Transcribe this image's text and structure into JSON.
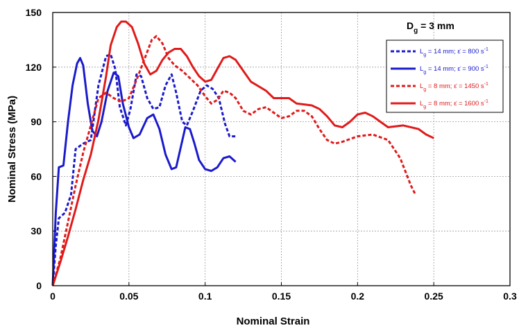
{
  "chart_data": {
    "type": "line",
    "xlabel": "Nominal Strain",
    "ylabel": "Nominal Stress (MPa)",
    "xlim": [
      0,
      0.3
    ],
    "ylim": [
      0,
      150
    ],
    "xticks": [
      0,
      0.05,
      0.1,
      0.15,
      0.2,
      0.25,
      0.3
    ],
    "xtick_labels": [
      "0",
      "0.05",
      "0.1",
      "0.15",
      "0.2",
      "0.25",
      "0.3"
    ],
    "yticks": [
      0,
      30,
      60,
      90,
      120,
      150
    ],
    "ytick_labels": [
      "0",
      "30",
      "60",
      "90",
      "120",
      "150"
    ],
    "grid": true,
    "legend_position": "top-right",
    "annotation": {
      "main": "D",
      "sub": "g",
      "rest": " = 3 mm"
    },
    "series": [
      {
        "name": "Lg = 14 mm; ε̇ = 800 s-1",
        "legend": {
          "l": "L",
          "g": "g",
          "mid": " = 14 mm; ",
          "rate": "ε̇",
          "val": " = 800 s",
          "exp": "-1"
        },
        "color": "#1a1acc",
        "style": "dashed",
        "points": [
          [
            0,
            0
          ],
          [
            0.002,
            22
          ],
          [
            0.004,
            37
          ],
          [
            0.008,
            40
          ],
          [
            0.012,
            50
          ],
          [
            0.015,
            75
          ],
          [
            0.02,
            78
          ],
          [
            0.025,
            80
          ],
          [
            0.03,
            110
          ],
          [
            0.035,
            126
          ],
          [
            0.038,
            127
          ],
          [
            0.041,
            119
          ],
          [
            0.044,
            98
          ],
          [
            0.048,
            88
          ],
          [
            0.051,
            97
          ],
          [
            0.055,
            116
          ],
          [
            0.058,
            115
          ],
          [
            0.062,
            103
          ],
          [
            0.066,
            97
          ],
          [
            0.07,
            98
          ],
          [
            0.074,
            110
          ],
          [
            0.078,
            116
          ],
          [
            0.081,
            106
          ],
          [
            0.085,
            90
          ],
          [
            0.088,
            88
          ],
          [
            0.092,
            96
          ],
          [
            0.097,
            107
          ],
          [
            0.101,
            110
          ],
          [
            0.105,
            108
          ],
          [
            0.109,
            103
          ],
          [
            0.113,
            89
          ],
          [
            0.116,
            82
          ],
          [
            0.12,
            82
          ]
        ]
      },
      {
        "name": "Lg = 14 mm; ε̇ = 900 s-1",
        "legend": {
          "l": "L",
          "g": "g",
          "mid": " = 14 mm; ",
          "rate": "ε̇",
          "val": " = 900 s",
          "exp": "-1"
        },
        "color": "#1a1acc",
        "style": "solid",
        "points": [
          [
            0,
            0
          ],
          [
            0.002,
            40
          ],
          [
            0.004,
            65
          ],
          [
            0.007,
            66
          ],
          [
            0.01,
            90
          ],
          [
            0.013,
            110
          ],
          [
            0.016,
            122
          ],
          [
            0.018,
            125
          ],
          [
            0.02,
            121
          ],
          [
            0.023,
            100
          ],
          [
            0.026,
            85
          ],
          [
            0.029,
            82
          ],
          [
            0.032,
            90
          ],
          [
            0.036,
            107
          ],
          [
            0.04,
            117
          ],
          [
            0.043,
            115
          ],
          [
            0.046,
            100
          ],
          [
            0.05,
            87
          ],
          [
            0.053,
            81
          ],
          [
            0.057,
            83
          ],
          [
            0.062,
            92
          ],
          [
            0.066,
            94
          ],
          [
            0.07,
            86
          ],
          [
            0.074,
            72
          ],
          [
            0.078,
            64
          ],
          [
            0.081,
            65
          ],
          [
            0.084,
            76
          ],
          [
            0.087,
            87
          ],
          [
            0.09,
            86
          ],
          [
            0.093,
            78
          ],
          [
            0.096,
            69
          ],
          [
            0.1,
            64
          ],
          [
            0.104,
            63
          ],
          [
            0.108,
            65
          ],
          [
            0.112,
            70
          ],
          [
            0.116,
            71
          ],
          [
            0.12,
            68
          ]
        ]
      },
      {
        "name": "Lg = 8 mm; ε̇ = 1450 s-1",
        "legend": {
          "l": "L",
          "g": "g",
          "mid": " = 8 mm; ",
          "rate": "ε̇",
          "val": " = 1450 s",
          "exp": "-1"
        },
        "color": "#e01a1a",
        "style": "dashed",
        "points": [
          [
            0,
            0
          ],
          [
            0.005,
            15
          ],
          [
            0.01,
            35
          ],
          [
            0.015,
            55
          ],
          [
            0.02,
            73
          ],
          [
            0.025,
            88
          ],
          [
            0.03,
            103
          ],
          [
            0.035,
            106
          ],
          [
            0.04,
            103
          ],
          [
            0.045,
            101
          ],
          [
            0.05,
            103
          ],
          [
            0.055,
            113
          ],
          [
            0.06,
            124
          ],
          [
            0.065,
            135
          ],
          [
            0.068,
            137
          ],
          [
            0.072,
            133
          ],
          [
            0.076,
            125
          ],
          [
            0.08,
            121
          ],
          [
            0.085,
            118
          ],
          [
            0.09,
            114
          ],
          [
            0.095,
            110
          ],
          [
            0.1,
            104
          ],
          [
            0.104,
            100
          ],
          [
            0.108,
            102
          ],
          [
            0.112,
            107
          ],
          [
            0.116,
            106
          ],
          [
            0.12,
            103
          ],
          [
            0.125,
            96
          ],
          [
            0.13,
            94
          ],
          [
            0.135,
            97
          ],
          [
            0.14,
            98
          ],
          [
            0.145,
            95
          ],
          [
            0.15,
            92
          ],
          [
            0.155,
            93
          ],
          [
            0.16,
            96
          ],
          [
            0.165,
            96
          ],
          [
            0.17,
            93
          ],
          [
            0.175,
            86
          ],
          [
            0.18,
            80
          ],
          [
            0.185,
            78
          ],
          [
            0.19,
            79
          ],
          [
            0.2,
            82
          ],
          [
            0.21,
            83
          ],
          [
            0.22,
            80
          ],
          [
            0.228,
            70
          ],
          [
            0.235,
            55
          ],
          [
            0.238,
            50
          ]
        ]
      },
      {
        "name": "Lg = 8 mm; ε̇ = 1600 s-1",
        "legend": {
          "l": "L",
          "g": "g",
          "mid": " = 8 mm; ",
          "rate": "ε̇",
          "val": " = 1600 s",
          "exp": "-1"
        },
        "color": "#e01a1a",
        "style": "solid",
        "points": [
          [
            0,
            0
          ],
          [
            0.005,
            13
          ],
          [
            0.01,
            27
          ],
          [
            0.015,
            42
          ],
          [
            0.02,
            58
          ],
          [
            0.025,
            72
          ],
          [
            0.03,
            91
          ],
          [
            0.035,
            115
          ],
          [
            0.038,
            132
          ],
          [
            0.042,
            142
          ],
          [
            0.045,
            145
          ],
          [
            0.048,
            145
          ],
          [
            0.052,
            142
          ],
          [
            0.056,
            133
          ],
          [
            0.06,
            122
          ],
          [
            0.064,
            116
          ],
          [
            0.068,
            118
          ],
          [
            0.072,
            124
          ],
          [
            0.076,
            128
          ],
          [
            0.08,
            130
          ],
          [
            0.084,
            130
          ],
          [
            0.088,
            126
          ],
          [
            0.092,
            120
          ],
          [
            0.096,
            115
          ],
          [
            0.1,
            112
          ],
          [
            0.104,
            113
          ],
          [
            0.108,
            119
          ],
          [
            0.112,
            125
          ],
          [
            0.116,
            126
          ],
          [
            0.12,
            124
          ],
          [
            0.125,
            118
          ],
          [
            0.13,
            112
          ],
          [
            0.14,
            107
          ],
          [
            0.145,
            103
          ],
          [
            0.155,
            103
          ],
          [
            0.16,
            100
          ],
          [
            0.17,
            99
          ],
          [
            0.175,
            97
          ],
          [
            0.18,
            93
          ],
          [
            0.185,
            88
          ],
          [
            0.19,
            87
          ],
          [
            0.195,
            90
          ],
          [
            0.2,
            94
          ],
          [
            0.205,
            95
          ],
          [
            0.21,
            93
          ],
          [
            0.215,
            90
          ],
          [
            0.22,
            87
          ],
          [
            0.23,
            88
          ],
          [
            0.24,
            86
          ],
          [
            0.245,
            83
          ],
          [
            0.25,
            81
          ]
        ]
      }
    ]
  }
}
